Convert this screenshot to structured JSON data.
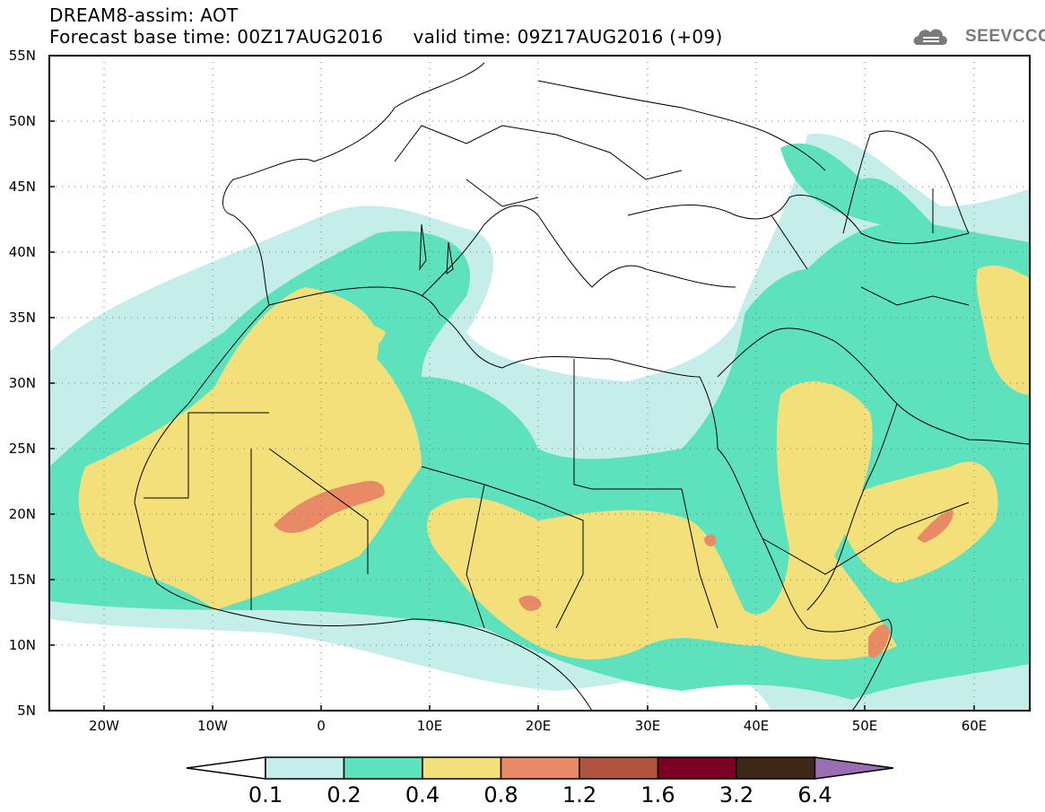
{
  "header": {
    "title": "DREAM8-assim: AOT",
    "base_time_label": "Forecast base time: 00Z17AUG2016",
    "valid_time_label": "valid time: 09Z17AUG2016 (+09)"
  },
  "logo": {
    "text": "SEEVCCC",
    "icon": "cloud-icon"
  },
  "map": {
    "region": "North Africa, Middle East and Mediterranean",
    "lat_labels": [
      "55N",
      "50N",
      "45N",
      "40N",
      "35N",
      "30N",
      "25N",
      "20N",
      "15N",
      "10N",
      "5N"
    ],
    "lon_labels": [
      "20W",
      "10W",
      "0",
      "10E",
      "20E",
      "30E",
      "40E",
      "50E",
      "60E"
    ],
    "lat_range": [
      5,
      55
    ],
    "lon_range": [
      -25,
      65
    ],
    "grid": "dotted",
    "field": "Aerosol optical thickness (AOT)"
  },
  "colorbar": {
    "labels": [
      "0.1",
      "0.2",
      "0.4",
      "0.8",
      "1.2",
      "1.6",
      "3.2",
      "6.4"
    ],
    "colors": [
      "#ffffff",
      "#c5eeea",
      "#5de2bd",
      "#f3e07b",
      "#e98a66",
      "#b05540",
      "#7c0024",
      "#3e2717",
      "#9a6db4"
    ]
  }
}
